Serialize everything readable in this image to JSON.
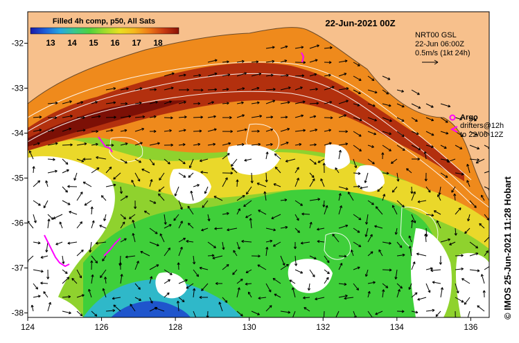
{
  "map": {
    "date_title": "22-Jun-2021 00Z",
    "credit": "© IMOS 25-Jun-2021 11:28 Hobart"
  },
  "colorbar": {
    "title": "Filled 4h comp, p50, All Sats",
    "ticks": [
      "13",
      "14",
      "15",
      "16",
      "17",
      "18"
    ],
    "colors": [
      "#1a1aa8",
      "#1f5fd8",
      "#27a8e0",
      "#39c98a",
      "#4fd23c",
      "#9fdc2c",
      "#e8e020",
      "#f6b81c",
      "#ee7a18",
      "#c83a12",
      "#8a1206"
    ]
  },
  "legend": {
    "model_line1": "NRT00 GSL",
    "model_line2": "22-Jun 06:00Z",
    "scale_text": "0.5m/s (1kt 24h)",
    "argo_label": "Argo",
    "drifters_line1": "drifters@12h",
    "drifters_line2": "to 22/06-12Z"
  },
  "axes": {
    "x_ticks": [
      "124",
      "126",
      "128",
      "130",
      "132",
      "134",
      "136"
    ],
    "y_ticks": [
      "-32",
      "-33",
      "-34",
      "-35",
      "-36",
      "-37",
      "-38"
    ],
    "xlim": [
      124,
      136.5
    ],
    "ylim": [
      -38.1,
      -31.3
    ]
  },
  "colors": {
    "land": "#f7c08c",
    "missing": "#ffffff",
    "argo": "#ff00ff",
    "contour": "#ffffff"
  }
}
